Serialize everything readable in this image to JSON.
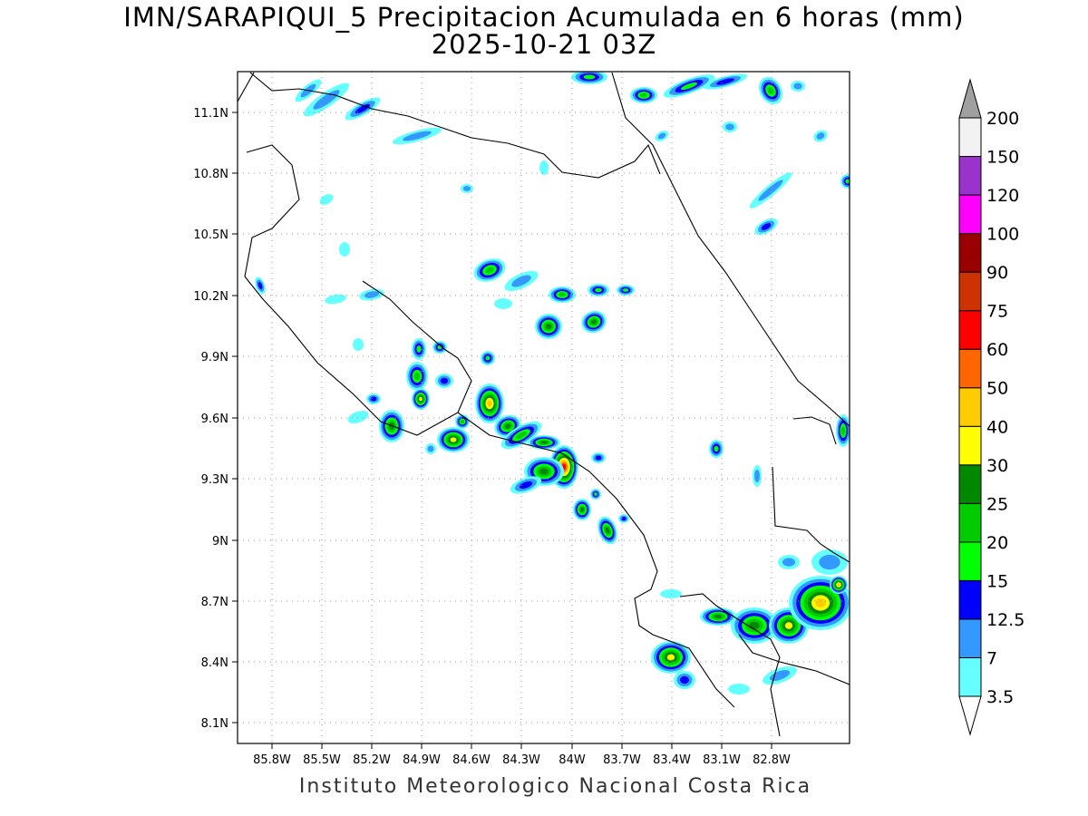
{
  "title": {
    "line1": "IMN/SARAPIQUI_5 Precipitacion Acumulada en 6 horas (mm)",
    "line2": "2025-10-21 03Z"
  },
  "credit": "Instituto Meteorologico Nacional Costa Rica",
  "axes": {
    "lon_ticks": [
      "85.8W",
      "85.5W",
      "85.2W",
      "84.9W",
      "84.6W",
      "84.3W",
      "84W",
      "83.7W",
      "83.4W",
      "83.1W",
      "82.8W"
    ],
    "lat_ticks": [
      "11.1N",
      "10.8N",
      "10.5N",
      "10.2N",
      "9.9N",
      "9.6N",
      "9.3N",
      "9N",
      "8.7N",
      "8.4N",
      "8.1N"
    ]
  },
  "colorbar": {
    "levels": [
      "3.5",
      "7",
      "12.5",
      "15",
      "20",
      "25",
      "30",
      "40",
      "50",
      "60",
      "75",
      "90",
      "100",
      "120",
      "150",
      "200"
    ],
    "colors": [
      "#66ffff",
      "#3399ff",
      "#0000ff",
      "#00ff00",
      "#00cc00",
      "#008800",
      "#ffff00",
      "#ffcc00",
      "#ff6600",
      "#ff0000",
      "#cc3300",
      "#990000",
      "#ff00ff",
      "#9933cc",
      "#f2f2f2",
      "#a0a0a0"
    ]
  }
}
